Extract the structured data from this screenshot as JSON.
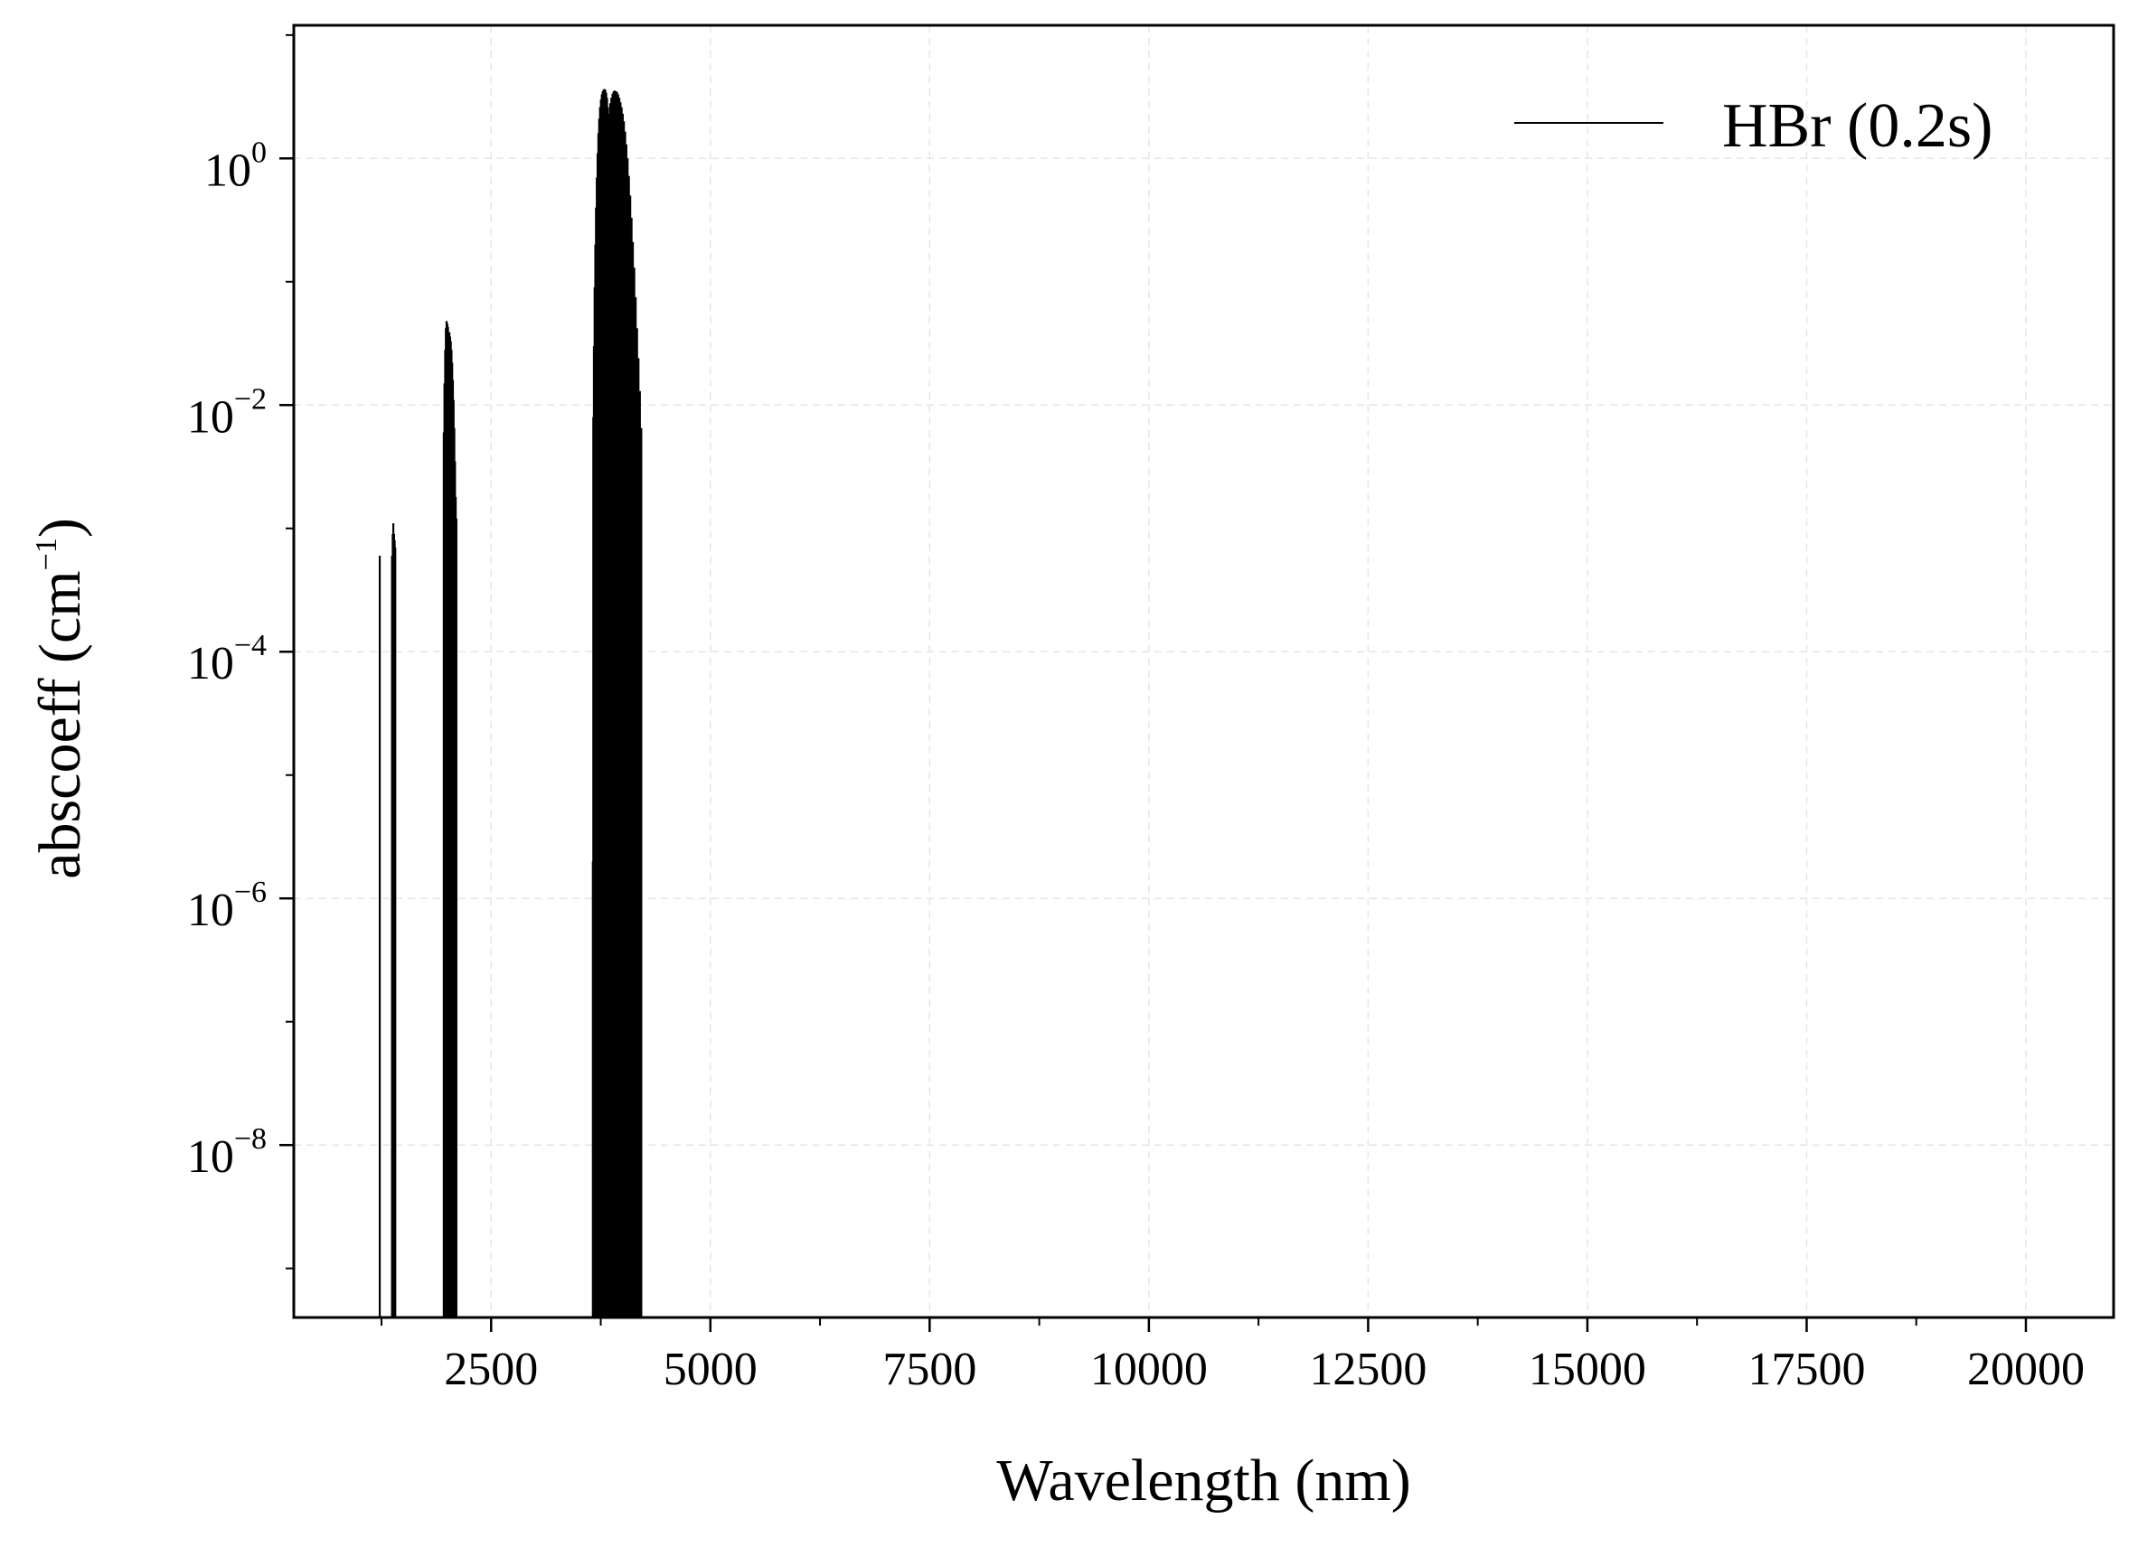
{
  "chart_data": {
    "type": "line",
    "xlabel": "Wavelength (nm)",
    "ylabel": {
      "prefix": "abscoeff (cm",
      "exponent": "−1",
      "suffix": ")"
    },
    "x_scale": "linear",
    "y_scale": "log",
    "xlim": [
      250,
      21000
    ],
    "ylim": [
      4e-10,
      12
    ],
    "grid": true,
    "x_major_ticks": [
      2500,
      5000,
      7500,
      10000,
      12500,
      15000,
      17500,
      20000
    ],
    "x_minor_ticks": [
      1250,
      3750,
      6250,
      8750,
      11250,
      13750,
      16250,
      18750
    ],
    "y_ticks": [
      {
        "value": 1,
        "base": "10",
        "exponent": "0"
      },
      {
        "value": 0.01,
        "base": "10",
        "exponent": "−2"
      },
      {
        "value": 0.0001,
        "base": "10",
        "exponent": "−4"
      },
      {
        "value": 1e-06,
        "base": "10",
        "exponent": "−6"
      },
      {
        "value": 1e-08,
        "base": "10",
        "exponent": "−8"
      }
    ],
    "legend": {
      "position": "top-right",
      "entries": [
        "HBr (0.2s)"
      ]
    },
    "series": [
      {
        "name": "HBr (0.2s)",
        "color": "#000000",
        "render": "vertical-lines",
        "line_peaks": [
          [
            1230,
            0.0006
          ],
          [
            1370,
            0.0006
          ],
          [
            1378,
            0.0009
          ],
          [
            1385,
            0.0011
          ],
          [
            1393,
            0.0009
          ],
          [
            1400,
            0.0008
          ],
          [
            1407,
            0.0007
          ],
          [
            1960,
            0.006
          ],
          [
            1968,
            0.015
          ],
          [
            1976,
            0.028
          ],
          [
            1984,
            0.042
          ],
          [
            1992,
            0.048
          ],
          [
            2000,
            0.046
          ],
          [
            2008,
            0.043
          ],
          [
            2016,
            0.038
          ],
          [
            2024,
            0.039
          ],
          [
            2032,
            0.036
          ],
          [
            2040,
            0.033
          ],
          [
            2048,
            0.028
          ],
          [
            2056,
            0.022
          ],
          [
            2064,
            0.016
          ],
          [
            2072,
            0.011
          ],
          [
            2080,
            0.0065
          ],
          [
            2088,
            0.0035
          ],
          [
            2096,
            0.0018
          ],
          [
            2104,
            0.0012
          ],
          [
            3660,
            2e-06
          ],
          [
            3665,
            0.008
          ],
          [
            3672,
            0.03
          ],
          [
            3680,
            0.09
          ],
          [
            3688,
            0.2
          ],
          [
            3696,
            0.4
          ],
          [
            3705,
            0.7
          ],
          [
            3714,
            1.1
          ],
          [
            3723,
            1.6
          ],
          [
            3732,
            2.1
          ],
          [
            3742,
            2.6
          ],
          [
            3752,
            3.0
          ],
          [
            3762,
            3.3
          ],
          [
            3772,
            3.5
          ],
          [
            3782,
            3.6
          ],
          [
            3792,
            3.65
          ],
          [
            3802,
            3.6
          ],
          [
            3812,
            3.4
          ],
          [
            3822,
            3.1
          ],
          [
            3832,
            2.6
          ],
          [
            3845,
            2.3
          ],
          [
            3858,
            2.8
          ],
          [
            3871,
            3.1
          ],
          [
            3884,
            3.35
          ],
          [
            3897,
            3.5
          ],
          [
            3910,
            3.55
          ],
          [
            3923,
            3.5
          ],
          [
            3936,
            3.45
          ],
          [
            3949,
            3.3
          ],
          [
            3962,
            3.1
          ],
          [
            3975,
            2.85
          ],
          [
            3988,
            2.6
          ],
          [
            4001,
            2.3
          ],
          [
            4014,
            2.0
          ],
          [
            4028,
            1.65
          ],
          [
            4042,
            1.3
          ],
          [
            4056,
            1.0
          ],
          [
            4071,
            0.72
          ],
          [
            4086,
            0.5
          ],
          [
            4101,
            0.33
          ],
          [
            4116,
            0.21
          ],
          [
            4132,
            0.13
          ],
          [
            4148,
            0.075
          ],
          [
            4164,
            0.042
          ],
          [
            4180,
            0.024
          ],
          [
            4196,
            0.013
          ],
          [
            4212,
            0.0065
          ]
        ]
      }
    ]
  }
}
